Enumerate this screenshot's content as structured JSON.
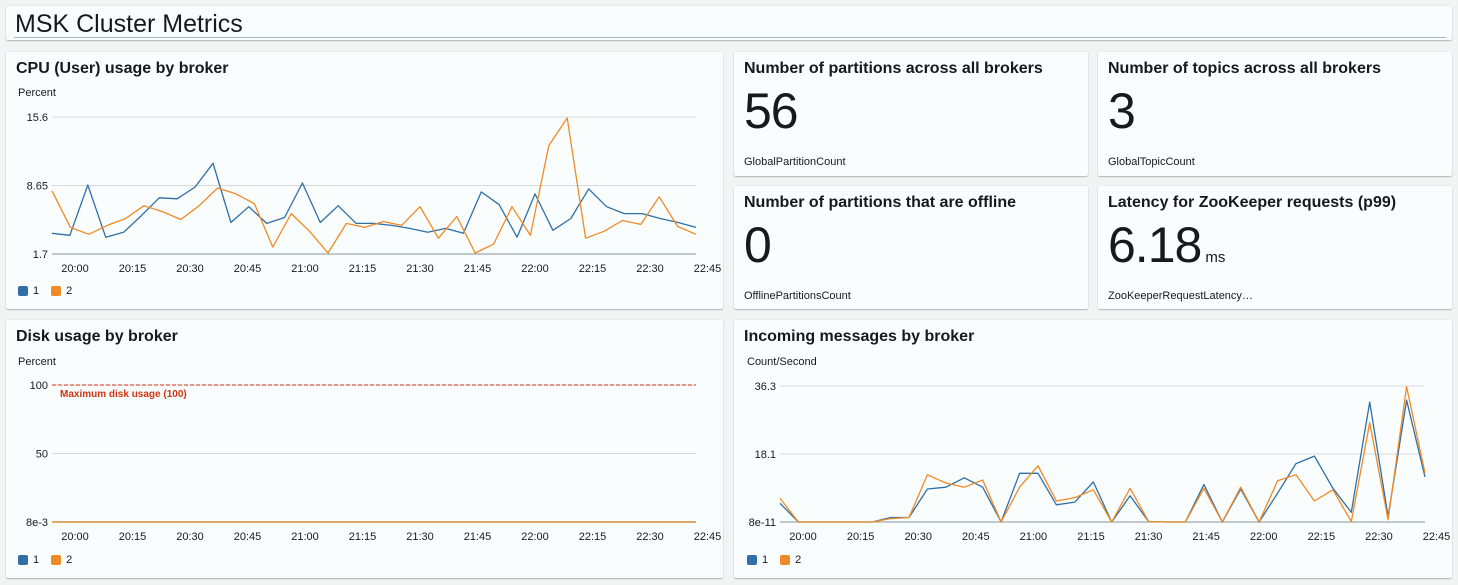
{
  "dashboard": {
    "title": "MSK Cluster Metrics"
  },
  "colors": {
    "series1": "#2f6fa6",
    "series2": "#f08a24",
    "threshold": "#d13212",
    "grid": "#d5dbdb"
  },
  "widgets": {
    "cpu": {
      "title": "CPU (User) usage by broker",
      "unit": "Percent",
      "legend": [
        "1",
        "2"
      ],
      "chart_data": {
        "type": "line",
        "title": "CPU (User) usage by broker",
        "ylabel": "Percent",
        "yticks": [
          "15.6",
          "8.65",
          "1.7"
        ],
        "ylim": [
          1.7,
          15.6
        ],
        "xlim": [
          0,
          56
        ],
        "xtick_labels": [
          "20:00",
          "20:15",
          "20:30",
          "20:45",
          "21:00",
          "21:15",
          "21:30",
          "21:45",
          "22:00",
          "22:15",
          "22:30",
          "22:45"
        ],
        "xtick_positions": [
          2,
          7,
          12,
          17,
          22,
          27,
          32,
          37,
          42,
          47,
          52,
          57
        ],
        "series": [
          {
            "name": "1",
            "values": [
              3.8,
              3.6,
              8.7,
              3.4,
              3.9,
              5.6,
              7.4,
              7.3,
              8.5,
              10.9,
              4.9,
              6.5,
              4.8,
              5.4,
              8.9,
              4.9,
              6.6,
              4.8,
              4.8,
              4.6,
              4.3,
              3.9,
              4.3,
              3.8,
              8.0,
              6.7,
              3.4,
              7.8,
              4.1,
              5.3,
              8.3,
              6.5,
              5.8,
              5.8,
              5.3,
              4.9,
              4.4
            ]
          },
          {
            "name": "2",
            "values": [
              8.1,
              4.4,
              3.7,
              4.6,
              5.3,
              6.6,
              6.0,
              5.2,
              6.6,
              8.4,
              7.8,
              6.8,
              2.4,
              5.8,
              4.0,
              1.8,
              4.8,
              4.4,
              5.0,
              4.6,
              6.5,
              3.3,
              5.5,
              1.8,
              2.7,
              6.5,
              3.6,
              12.7,
              15.5,
              3.3,
              4.0,
              5.1,
              4.7,
              7.5,
              4.5,
              3.7
            ]
          }
        ]
      }
    },
    "partitions": {
      "title": "Number of partitions across all brokers",
      "value": "56",
      "metric": "GlobalPartitionCount"
    },
    "topics": {
      "title": "Number of topics across all brokers",
      "value": "3",
      "metric": "GlobalTopicCount"
    },
    "offline": {
      "title": "Number of partitions that are offline",
      "value": "0",
      "metric": "OfflinePartitionsCount"
    },
    "latency": {
      "title": "Latency for ZooKeeper requests (p99)",
      "value": "6.18",
      "unit": "ms",
      "metric": "ZooKeeperRequestLatency…"
    },
    "disk": {
      "title": "Disk usage by broker",
      "unit": "Percent",
      "legend": [
        "1",
        "2"
      ],
      "annotation": "Maximum disk usage (100)",
      "chart_data": {
        "type": "line",
        "title": "Disk usage by broker",
        "ylabel": "Percent",
        "yticks": [
          "100",
          "50",
          "8e-3"
        ],
        "ylim": [
          0.008,
          100
        ],
        "xlim": [
          0,
          56
        ],
        "xtick_labels": [
          "20:00",
          "20:15",
          "20:30",
          "20:45",
          "21:00",
          "21:15",
          "21:30",
          "21:45",
          "22:00",
          "22:15",
          "22:30",
          "22:45"
        ],
        "xtick_positions": [
          2,
          7,
          12,
          17,
          22,
          27,
          32,
          37,
          42,
          47,
          52,
          57
        ],
        "threshold": 100,
        "series": [
          {
            "name": "1",
            "values": [
              0.008,
              0.008,
              0.008,
              0.008,
              0.008,
              0.008,
              0.008,
              0.008,
              0.008,
              0.008,
              0.008,
              0.008,
              0.008,
              0.008,
              0.008,
              0.008,
              0.008,
              0.008,
              0.008,
              0.008,
              0.008,
              0.008,
              0.008,
              0.008,
              0.008,
              0.008,
              0.008,
              0.008,
              0.008,
              0.008,
              0.008,
              0.008,
              0.008,
              0.008,
              0.008,
              0.008,
              0.008
            ]
          },
          {
            "name": "2",
            "values": [
              0.008,
              0.008,
              0.008,
              0.008,
              0.008,
              0.008,
              0.008,
              0.008,
              0.008,
              0.008,
              0.008,
              0.008,
              0.008,
              0.008,
              0.008,
              0.008,
              0.008,
              0.008,
              0.008,
              0.008,
              0.008,
              0.008,
              0.008,
              0.008,
              0.008,
              0.008,
              0.008,
              0.008,
              0.008,
              0.008,
              0.008,
              0.008,
              0.008,
              0.008,
              0.008,
              0.008,
              0.008
            ]
          }
        ]
      }
    },
    "incoming": {
      "title": "Incoming messages by broker",
      "unit": "Count/Second",
      "legend": [
        "1",
        "2"
      ],
      "chart_data": {
        "type": "line",
        "title": "Incoming messages by broker",
        "ylabel": "Count/Second",
        "yticks": [
          "36.3",
          "18.1",
          "8e-11"
        ],
        "ylim": [
          0,
          36.3
        ],
        "xlim": [
          0,
          56
        ],
        "xtick_labels": [
          "20:00",
          "20:15",
          "20:30",
          "20:45",
          "21:00",
          "21:15",
          "21:30",
          "21:45",
          "22:00",
          "22:15",
          "22:30",
          "22:45"
        ],
        "xtick_positions": [
          2,
          7,
          12,
          17,
          22,
          27,
          32,
          37,
          42,
          47,
          52,
          57
        ],
        "series": [
          {
            "name": "1",
            "values": [
              5,
              0,
              0,
              0,
              0,
              0,
              1.2,
              1.2,
              8.8,
              9.3,
              11.8,
              9.3,
              0,
              13,
              13,
              4.6,
              5.3,
              10.7,
              0,
              7,
              0.1,
              0,
              0,
              10,
              0,
              8.8,
              0,
              7.7,
              15.6,
              17.6,
              9,
              2.6,
              32,
              1.5,
              32.5,
              12
            ]
          },
          {
            "name": "2",
            "values": [
              6.3,
              0,
              0,
              0,
              0,
              0,
              0.9,
              1.2,
              12.6,
              10.4,
              9.3,
              11.2,
              0,
              9.3,
              15,
              5.6,
              6.5,
              8.6,
              0,
              9,
              0.1,
              0,
              0,
              9,
              0,
              9.3,
              0,
              11,
              12.6,
              5.6,
              8.6,
              0.1,
              26.5,
              0.6,
              36.1,
              13
            ]
          }
        ]
      }
    }
  }
}
